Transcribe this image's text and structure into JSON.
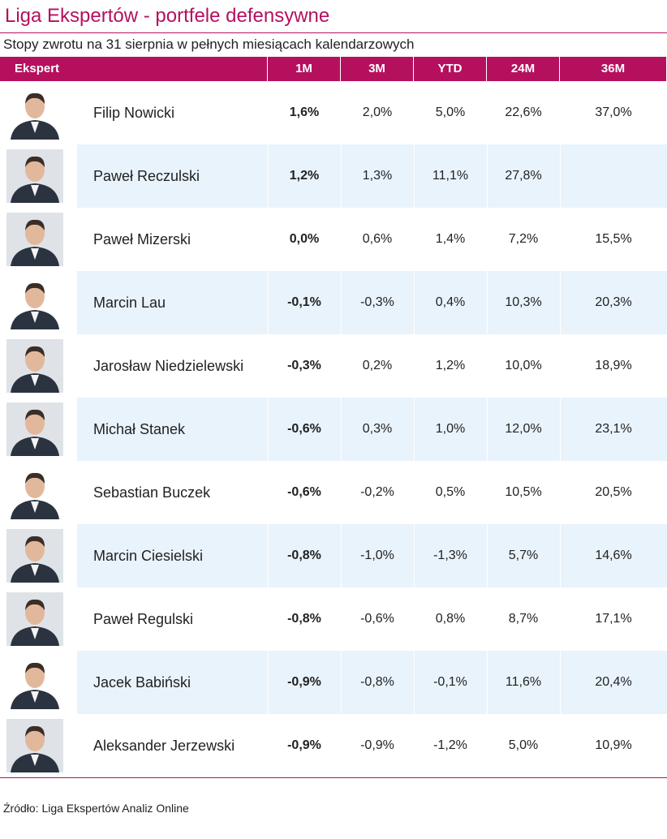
{
  "header": {
    "title": "Liga Ekspertów - portfele defensywne",
    "subtitle": "Stopy zwrotu na 31 sierpnia w pełnych miesiącach kalendarzowych"
  },
  "table": {
    "columns": [
      "Ekspert",
      "1M",
      "3M",
      "YTD",
      "24M",
      "36M"
    ],
    "rows": [
      [
        "Filip Nowicki",
        "1,6%",
        "2,0%",
        "5,0%",
        "22,6%",
        "37,0%"
      ],
      [
        "Paweł Reczulski",
        "1,2%",
        "1,3%",
        "11,1%",
        "27,8%",
        null
      ],
      [
        "Paweł Mizerski",
        "0,0%",
        "0,6%",
        "1,4%",
        "7,2%",
        "15,5%"
      ],
      [
        "Marcin Lau",
        "-0,1%",
        "-0,3%",
        "0,4%",
        "10,3%",
        "20,3%"
      ],
      [
        "Jarosław Niedzielewski",
        "-0,3%",
        "0,2%",
        "1,2%",
        "10,0%",
        "18,9%"
      ],
      [
        "Michał Stanek",
        "-0,6%",
        "0,3%",
        "1,0%",
        "12,0%",
        "23,1%"
      ],
      [
        "Sebastian Buczek",
        "-0,6%",
        "-0,2%",
        "0,5%",
        "10,5%",
        "20,5%"
      ],
      [
        "Marcin Ciesielski",
        "-0,8%",
        "-1,0%",
        "-1,3%",
        "5,7%",
        "14,6%"
      ],
      [
        "Paweł Regulski",
        "-0,8%",
        "-0,6%",
        "0,8%",
        "8,7%",
        "17,1%"
      ],
      [
        "Jacek Babiński",
        "-0,9%",
        "-0,8%",
        "-0,1%",
        "11,6%",
        "20,4%"
      ],
      [
        "Aleksander Jerzewski",
        "-0,9%",
        "-0,9%",
        "-1,2%",
        "5,0%",
        "10,9%"
      ]
    ]
  },
  "source": "Źródło: Liga Ekspertów Analiz Online"
}
